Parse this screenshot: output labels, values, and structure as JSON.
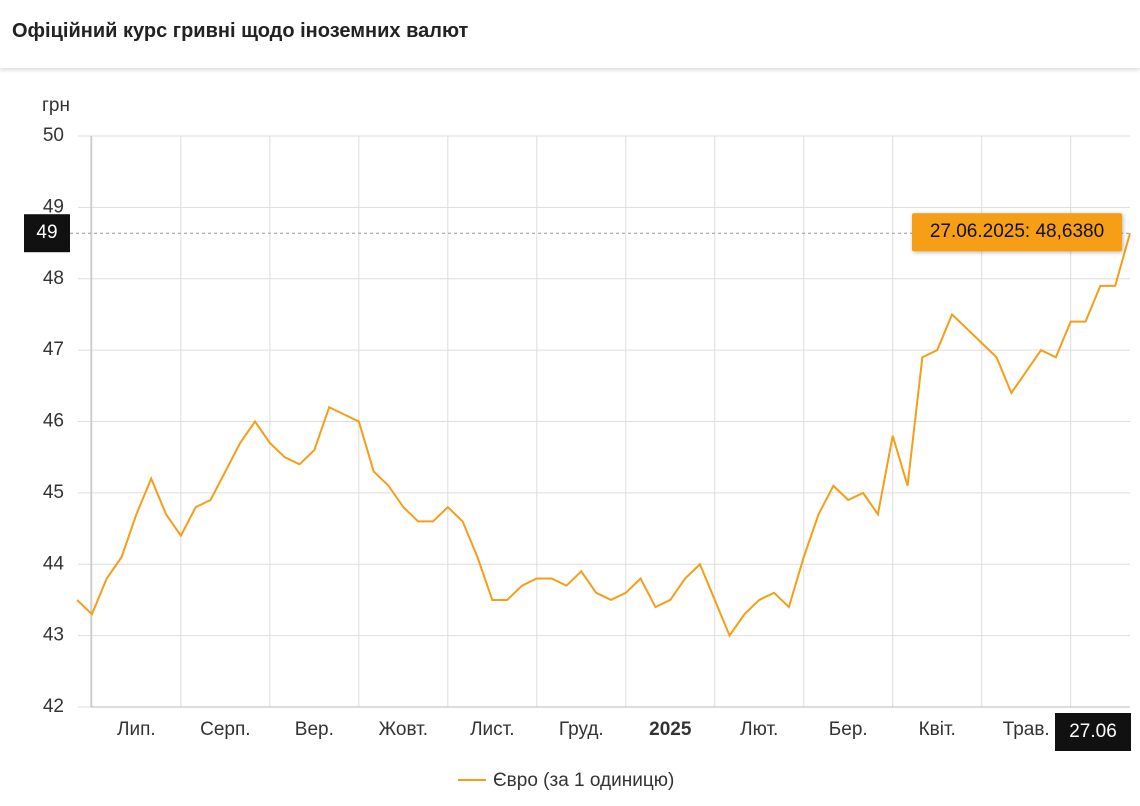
{
  "title": "Офіційний курс гривні щодо іноземних валют",
  "chart_data": {
    "type": "line",
    "y_label": "грн",
    "categories": [
      null,
      null,
      null,
      null,
      "Лип.",
      null,
      null,
      null,
      null,
      null,
      "Серп.",
      null,
      null,
      null,
      null,
      null,
      "Вер.",
      null,
      null,
      null,
      null,
      null,
      "Жовт.",
      null,
      null,
      null,
      null,
      null,
      "Лист.",
      null,
      null,
      null,
      null,
      null,
      "Груд.",
      null,
      null,
      null,
      null,
      null,
      "2025",
      null,
      null,
      null,
      null,
      null,
      "Лют.",
      null,
      null,
      null,
      null,
      null,
      "Бер.",
      null,
      null,
      null,
      null,
      null,
      "Квіт.",
      null,
      null,
      null,
      null,
      null,
      "Трав.",
      null,
      null,
      null,
      null,
      null,
      null,
      "27.06"
    ],
    "series": [
      {
        "name": "Євро (за 1 одиницю)",
        "color": "#f59e16",
        "values": [
          43.5,
          43.3,
          43.8,
          44.1,
          44.7,
          45.2,
          44.7,
          44.4,
          44.8,
          44.9,
          45.3,
          45.7,
          46.0,
          45.7,
          45.5,
          45.4,
          45.6,
          46.2,
          46.1,
          46.0,
          45.3,
          45.1,
          44.8,
          44.6,
          44.6,
          44.8,
          44.6,
          44.1,
          43.5,
          43.5,
          43.7,
          43.8,
          43.8,
          43.7,
          43.9,
          43.6,
          43.5,
          43.6,
          43.8,
          43.4,
          43.5,
          43.8,
          44.0,
          43.5,
          43.0,
          43.3,
          43.5,
          43.6,
          43.4,
          44.1,
          44.7,
          45.1,
          44.9,
          45.0,
          44.7,
          45.8,
          45.1,
          46.9,
          47.0,
          47.5,
          47.3,
          47.1,
          46.9,
          46.4,
          46.7,
          47.0,
          46.9,
          47.4,
          47.4,
          47.9,
          47.9,
          48.638
        ]
      }
    ],
    "ylim": [
      42,
      50
    ],
    "yticks": [
      42,
      43,
      44,
      45,
      46,
      47,
      48,
      49,
      50
    ],
    "grid": true,
    "crosshair_label": "49",
    "tooltip": "27.06.2025: 48,6380"
  }
}
